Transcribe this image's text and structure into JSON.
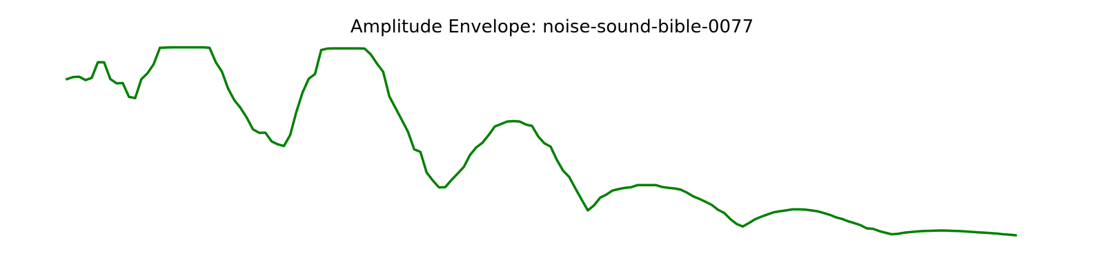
{
  "chart_data": {
    "type": "line",
    "title": "Amplitude Envelope: noise-sound-bible-0077",
    "xlabel": "",
    "ylabel": "",
    "grid": false,
    "axes_visible": false,
    "ylim": [
      0,
      1
    ],
    "series": [
      {
        "color": "#008000",
        "values": [
          0.823,
          0.833,
          0.834,
          0.818,
          0.829,
          0.904,
          0.903,
          0.823,
          0.803,
          0.804,
          0.738,
          0.732,
          0.822,
          0.851,
          0.895,
          0.973,
          0.974,
          0.975,
          0.975,
          0.975,
          0.975,
          0.975,
          0.975,
          0.973,
          0.904,
          0.858,
          0.777,
          0.722,
          0.685,
          0.639,
          0.583,
          0.566,
          0.567,
          0.525,
          0.511,
          0.503,
          0.555,
          0.666,
          0.759,
          0.825,
          0.847,
          0.962,
          0.969,
          0.97,
          0.97,
          0.97,
          0.97,
          0.97,
          0.969,
          0.941,
          0.897,
          0.858,
          0.74,
          0.684,
          0.628,
          0.571,
          0.487,
          0.475,
          0.377,
          0.338,
          0.305,
          0.306,
          0.34,
          0.371,
          0.403,
          0.46,
          0.496,
          0.518,
          0.555,
          0.596,
          0.608,
          0.62,
          0.622,
          0.62,
          0.606,
          0.599,
          0.549,
          0.516,
          0.5,
          0.437,
          0.385,
          0.355,
          0.3,
          0.247,
          0.195,
          0.219,
          0.256,
          0.271,
          0.29,
          0.297,
          0.303,
          0.306,
          0.316,
          0.316,
          0.316,
          0.316,
          0.307,
          0.303,
          0.3,
          0.294,
          0.28,
          0.262,
          0.25,
          0.236,
          0.221,
          0.198,
          0.183,
          0.153,
          0.13,
          0.118,
          0.135,
          0.153,
          0.165,
          0.176,
          0.186,
          0.191,
          0.195,
          0.2,
          0.2,
          0.199,
          0.195,
          0.191,
          0.183,
          0.174,
          0.162,
          0.154,
          0.143,
          0.134,
          0.124,
          0.109,
          0.107,
          0.096,
          0.088,
          0.081,
          0.083,
          0.088,
          0.091,
          0.094,
          0.096,
          0.097,
          0.098,
          0.099,
          0.098,
          0.097,
          0.096,
          0.094,
          0.092,
          0.09,
          0.088,
          0.086,
          0.084,
          0.081,
          0.079,
          0.076
        ]
      }
    ]
  }
}
